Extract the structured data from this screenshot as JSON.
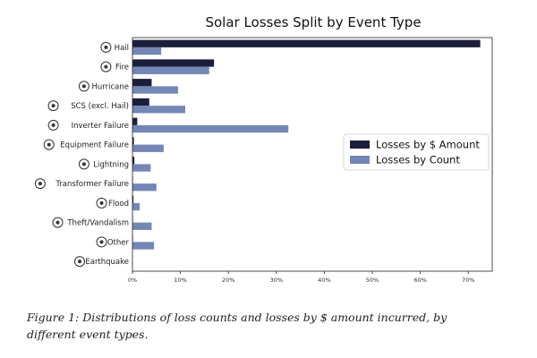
{
  "chart_data": {
    "type": "bar",
    "orientation": "horizontal",
    "title": "Solar Losses Split by Event Type",
    "categories": [
      "Hail",
      "Fire",
      "Hurricane",
      "SCS (excl. Hail)",
      "Inverter Failure",
      "Equipment Failure",
      "Lightning",
      "Transformer Failure",
      "Flood",
      "Theft/Vandalism",
      "Other",
      "Earthquake"
    ],
    "series": [
      {
        "name": "Losses by $ Amount",
        "color": "#1c1f3b",
        "values": [
          72.5,
          17,
          4,
          3.5,
          1,
          0.3,
          0.4,
          0.1,
          0.2,
          0.1,
          0.1,
          0
        ]
      },
      {
        "name": "Losses by Count",
        "color": "#7486b5",
        "values": [
          6,
          16,
          9.5,
          11,
          32.5,
          6.5,
          3.8,
          5,
          1.5,
          4,
          4.5,
          0
        ]
      }
    ],
    "xlim": [
      0,
      75
    ],
    "xticks": [
      0,
      10,
      20,
      30,
      40,
      50,
      60,
      70
    ],
    "xtick_labels": [
      "0%",
      "10%",
      "20%",
      "30%",
      "40%",
      "50%",
      "60%",
      "70%"
    ],
    "legend_position": "center-right",
    "grid": false,
    "icons": [
      "hail-icon",
      "fire-icon",
      "hurricane-icon",
      "tornado-icon",
      "inverter-icon",
      "equipment-icon",
      "lightning-icon",
      "transformer-icon",
      "flood-icon",
      "theft-icon",
      "other-icon",
      "earthquake-icon"
    ]
  },
  "caption": "Figure 1: Distributions of loss counts and losses by $ amount incurred, by different event types."
}
